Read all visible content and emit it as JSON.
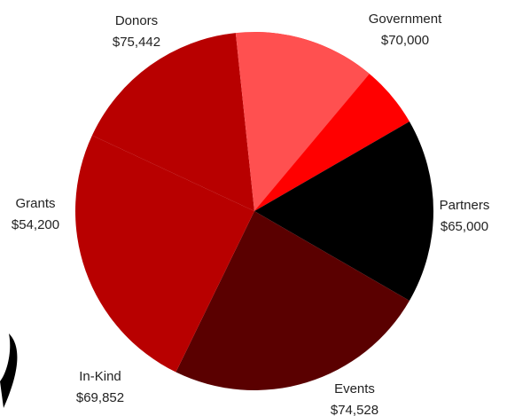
{
  "chart_data": {
    "type": "pie",
    "title": "",
    "slices": [
      {
        "label": "Government",
        "value_label": "$70,000",
        "value": 70000,
        "color": "#ff0000"
      },
      {
        "label": "Partners",
        "value_label": "$65,000",
        "value": 65000,
        "color": "#000000"
      },
      {
        "label": "Events",
        "value_label": "$74,528",
        "value": 74528,
        "color": "#5a0000"
      },
      {
        "label": "In-Kind",
        "value_label": "$69,852",
        "value": 69852,
        "color": "#b80000"
      },
      {
        "label": "Grants",
        "value_label": "$54,200",
        "value": 54200,
        "color": "#b80000"
      },
      {
        "label": "Donors",
        "value_label": "$75,442",
        "value": 75442,
        "color": "#ff5050"
      }
    ]
  }
}
